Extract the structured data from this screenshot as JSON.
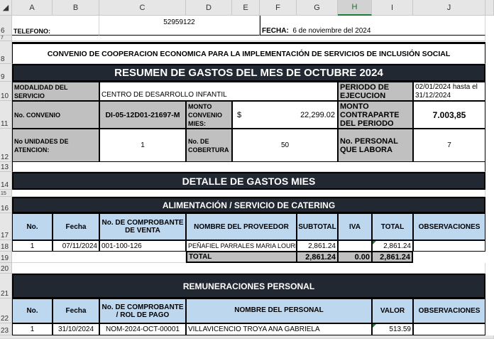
{
  "columns": [
    "A",
    "B",
    "C",
    "D",
    "E",
    "F",
    "G",
    "H",
    "I",
    "J"
  ],
  "selected_column": "H",
  "rows": [
    "6",
    "7",
    "8",
    "9",
    "10",
    "11",
    "12",
    "13",
    "14",
    "15",
    "16",
    "17",
    "18",
    "19",
    "20",
    "21",
    "22",
    "23"
  ],
  "header": {
    "telefono_label": "TELEFONO:",
    "telefono": "52959122",
    "fecha_label": "FECHA:",
    "fecha": "6 de noviembre del 2024",
    "convenio_title": "CONVENIO DE COOPERACION ECONOMICA PARA LA IMPLEMENTACIÓN DE SERVICIOS DE INCLUSIÓN SOCIAL",
    "resumen_title": "RESUMEN DE GASTOS  DEL MES DE OCTUBRE 2024"
  },
  "summary": {
    "modalidad_label": "MODALIDAD DEL SERVICIO",
    "modalidad": "CENTRO DE DESARROLLO INFANTIL",
    "periodo_label": "PERIODO DE EJECUCION",
    "periodo": "02/01/2024 hasta el 31/12/2024",
    "convenio_label": "No. CONVENIO",
    "convenio": "DI-05-12D01-21697-M",
    "monto_label": "MONTO CONVENIO MIES:",
    "monto_currency": "$",
    "monto": "22,299.02",
    "contraparte_label": "MONTO CONTRAPARTE DEL PERIODO",
    "contraparte": "7.003,85",
    "unidades_label": "No UNIDADES DE ATENCION:",
    "unidades": "1",
    "cobertura_label": "No. DE COBERTURA",
    "cobertura": "50",
    "personal_label": "No. PERSONAL QUE LABORA",
    "personal": "7"
  },
  "detalle_title": "DETALLE DE GASTOS  MIES",
  "catering": {
    "title": "ALIMENTACIÓN / SERVICIO DE CATERING",
    "headers": [
      "No.",
      "Fecha",
      "No. DE COMPROBANTE DE VENTA",
      "NOMBRE DEL PROVEEDOR",
      "SUBTOTAL",
      "IVA",
      "TOTAL",
      "OBSERVACIONES"
    ],
    "rows": [
      {
        "no": "1",
        "fecha": "07/11/2024",
        "comprobante": "001-100-126",
        "proveedor": "PEÑAFIEL PARRALES MARIA LOURDES",
        "subtotal": "2,861.24",
        "iva": "",
        "total": "2,861.24",
        "obs": ""
      }
    ],
    "total_label": "TOTAL",
    "total_subtotal": "2,861.24",
    "total_iva": "0.00",
    "total_total": "2,861.24"
  },
  "remuneraciones": {
    "title": "REMUNERACIONES PERSONAL",
    "headers": [
      "No.",
      "Fecha",
      "No. DE COMPROBANTE / ROL DE PAGO",
      "NOMBRE DEL PERSONAL",
      "VALOR",
      "OBSERVACIONES"
    ],
    "rows": [
      {
        "no": "1",
        "fecha": "31/10/2024",
        "comprobante": "NOM-2024-OCT-00001",
        "nombre": "VILLAVICENCIO TROYA ANA GABRIELA",
        "valor": "513.59",
        "obs": ""
      }
    ]
  },
  "colors": {
    "dark_header": "#222831",
    "light_blue": "#bdd7ee",
    "grey": "#c0c0c0",
    "selected_column": "#1e7b34"
  }
}
